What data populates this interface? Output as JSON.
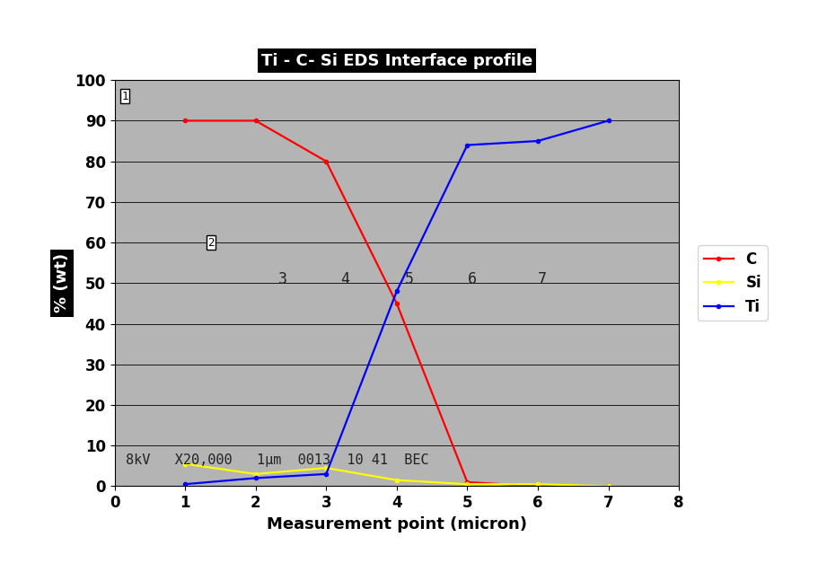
{
  "chart_data": {
    "type": "line",
    "title": "Ti - C- Si EDS Interface profile",
    "x_label": "Measurement point (micron)",
    "y_label": "% (wt)",
    "x": [
      1,
      2,
      3,
      4,
      5,
      6,
      7
    ],
    "series": [
      {
        "name": "C",
        "color": "#ff0000",
        "marker": "o",
        "values": [
          90,
          90,
          80,
          45,
          1,
          0,
          0
        ]
      },
      {
        "name": "Si",
        "color": "#ffff00",
        "marker": "o",
        "values": [
          5.5,
          3,
          4.5,
          1.5,
          0.5,
          0.5,
          0
        ]
      },
      {
        "name": "Ti",
        "color": "#0000ff",
        "marker": "o",
        "values": [
          0.5,
          2,
          3,
          48,
          84,
          85,
          90
        ]
      }
    ],
    "xlim": [
      0,
      8
    ],
    "xticks": [
      0,
      1,
      2,
      3,
      4,
      5,
      6,
      7,
      8
    ],
    "ylim": [
      0,
      100
    ],
    "yticks": [
      0,
      10,
      20,
      30,
      40,
      50,
      60,
      70,
      80,
      90,
      100
    ],
    "grid": true,
    "legend": "right",
    "annotations": [
      "1",
      "2",
      "3",
      "4",
      "5",
      "6",
      "7",
      "8kV   X20,000   1µm  0013  10 41  BEC"
    ]
  }
}
